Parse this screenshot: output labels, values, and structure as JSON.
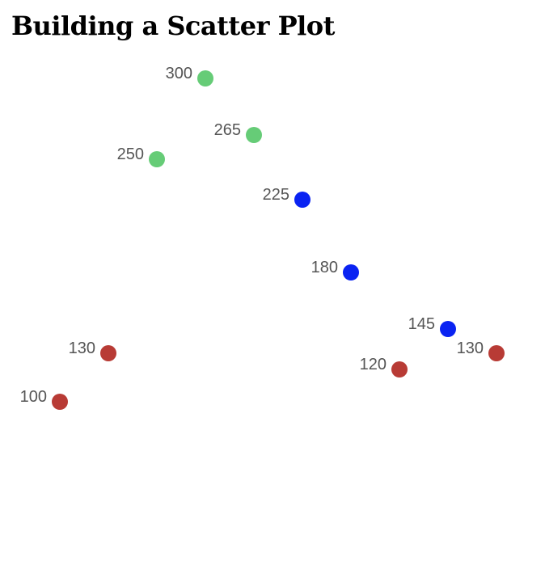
{
  "page": {
    "title": "Building a Scatter Plot"
  },
  "chart_data": {
    "type": "scatter",
    "title": "Building a Scatter Plot",
    "xlabel": "",
    "ylabel": "",
    "grid": false,
    "axes_visible": false,
    "points": [
      {
        "index": 0,
        "value": 100,
        "color": "#b83b35"
      },
      {
        "index": 1,
        "value": 130,
        "color": "#b83b35"
      },
      {
        "index": 2,
        "value": 250,
        "color": "#66cc77"
      },
      {
        "index": 3,
        "value": 300,
        "color": "#66cc77"
      },
      {
        "index": 4,
        "value": 265,
        "color": "#66cc77"
      },
      {
        "index": 5,
        "value": 225,
        "color": "#0a23f2"
      },
      {
        "index": 6,
        "value": 180,
        "color": "#0a23f2"
      },
      {
        "index": 7,
        "value": 120,
        "color": "#b83b35"
      },
      {
        "index": 8,
        "value": 145,
        "color": "#0a23f2"
      },
      {
        "index": 9,
        "value": 130,
        "color": "#b83b35"
      }
    ]
  }
}
